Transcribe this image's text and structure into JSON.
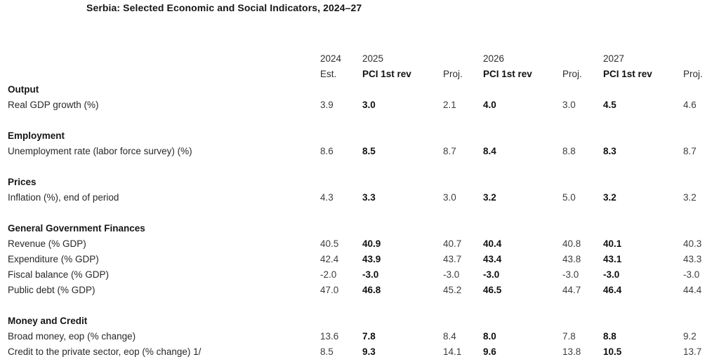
{
  "title": "Serbia: Selected Economic and Social Indicators, 2024–27",
  "colors": {
    "background": "#ffffff",
    "text_primary": "#161616",
    "text_secondary": "#3d3d3d"
  },
  "table": {
    "header_row1": [
      "",
      "2024",
      "2025",
      "",
      "2026",
      "",
      "2027",
      ""
    ],
    "header_row2": [
      "",
      "Est.",
      "PCI 1st rev",
      "Proj.",
      "PCI 1st rev",
      "Proj.",
      "PCI 1st rev",
      "Proj."
    ],
    "rows": [
      {
        "type": "section",
        "label": "Output"
      },
      {
        "type": "data",
        "label": "Real GDP growth (%)",
        "values": [
          "3.9",
          "3.0",
          "2.1",
          "4.0",
          "3.0",
          "4.5",
          "4.6"
        ]
      },
      {
        "type": "blank"
      },
      {
        "type": "section",
        "label": "Employment"
      },
      {
        "type": "data",
        "label": "Unemployment rate (labor force survey) (%)",
        "values": [
          "8.6",
          "8.5",
          "8.7",
          "8.4",
          "8.8",
          "8.3",
          "8.7"
        ]
      },
      {
        "type": "blank"
      },
      {
        "type": "section",
        "label": "Prices"
      },
      {
        "type": "data",
        "label": "Inflation (%), end of period",
        "values": [
          "4.3",
          "3.3",
          "3.0",
          "3.2",
          "5.0",
          "3.2",
          "3.2"
        ]
      },
      {
        "type": "blank"
      },
      {
        "type": "section",
        "label": "General Government Finances"
      },
      {
        "type": "data",
        "label": "Revenue (% GDP)",
        "values": [
          "40.5",
          "40.9",
          "40.7",
          "40.4",
          "40.8",
          "40.1",
          "40.3"
        ]
      },
      {
        "type": "data",
        "label": "Expenditure (% GDP)",
        "values": [
          "42.4",
          "43.9",
          "43.7",
          "43.4",
          "43.8",
          "43.1",
          "43.3"
        ]
      },
      {
        "type": "data",
        "label": "Fiscal balance (% GDP)",
        "values": [
          "-2.0",
          "-3.0",
          "-3.0",
          "-3.0",
          "-3.0",
          "-3.0",
          "-3.0"
        ]
      },
      {
        "type": "data",
        "label": "Public debt (% GDP)",
        "values": [
          "47.0",
          "46.8",
          "45.2",
          "46.5",
          "44.7",
          "46.4",
          "44.4"
        ]
      },
      {
        "type": "blank"
      },
      {
        "type": "section",
        "label": "Money and Credit"
      },
      {
        "type": "data",
        "label": "Broad money, eop (% change)",
        "values": [
          "13.6",
          "7.8",
          "8.4",
          "8.0",
          "7.8",
          "8.8",
          "9.2"
        ]
      },
      {
        "type": "data",
        "label": "Credit to the private sector, eop (% change) 1/",
        "values": [
          "8.5",
          "9.3",
          "14.1",
          "9.6",
          "13.8",
          "10.5",
          "13.7"
        ]
      }
    ]
  }
}
